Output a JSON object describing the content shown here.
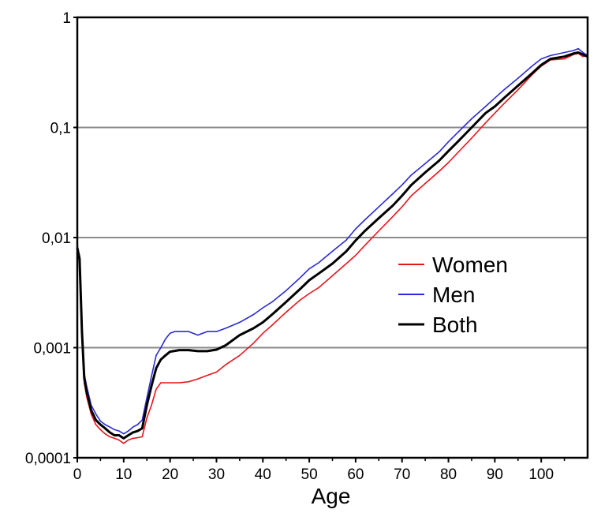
{
  "chart_data": {
    "type": "line",
    "title": "",
    "xlabel": "Age",
    "ylabel": "",
    "y_scale": "log",
    "xlim": [
      0,
      110
    ],
    "ylim": [
      0.0001,
      1
    ],
    "grid": "horizontal",
    "legend_position": "center-right",
    "x_ticks": [
      "0",
      "10",
      "20",
      "30",
      "40",
      "50",
      "60",
      "70",
      "80",
      "90",
      "100"
    ],
    "y_ticks": [
      "0,0001",
      "0,001",
      "0,01",
      "0,1",
      "1"
    ],
    "series": [
      {
        "name": "Women",
        "color": "#e8141b",
        "x": [
          0,
          0.5,
          1,
          1.5,
          2,
          3,
          4,
          5,
          6,
          7,
          8,
          9,
          10,
          11,
          12,
          13,
          14,
          15,
          16,
          17,
          18,
          20,
          22,
          24,
          26,
          28,
          30,
          32,
          35,
          38,
          40,
          42,
          45,
          48,
          50,
          52,
          55,
          58,
          60,
          62,
          65,
          68,
          70,
          72,
          75,
          78,
          80,
          82,
          85,
          88,
          90,
          92,
          95,
          98,
          100,
          102,
          105,
          107,
          108,
          109,
          110
        ],
        "y": [
          0.0075,
          0.006,
          0.0013,
          0.00048,
          0.00036,
          0.00025,
          0.0002,
          0.00018,
          0.000165,
          0.000155,
          0.00015,
          0.000145,
          0.000135,
          0.000145,
          0.00015,
          0.000152,
          0.000155,
          0.00023,
          0.0003,
          0.00042,
          0.00048,
          0.00048,
          0.00048,
          0.00049,
          0.00052,
          0.00056,
          0.0006,
          0.0007,
          0.00085,
          0.0011,
          0.00135,
          0.0016,
          0.0021,
          0.0027,
          0.0031,
          0.0035,
          0.0045,
          0.0058,
          0.0069,
          0.0085,
          0.0115,
          0.0155,
          0.019,
          0.024,
          0.031,
          0.04,
          0.048,
          0.059,
          0.08,
          0.11,
          0.135,
          0.165,
          0.22,
          0.3,
          0.36,
          0.41,
          0.42,
          0.46,
          0.47,
          0.44,
          0.45
        ]
      },
      {
        "name": "Men",
        "color": "#2a2ad4",
        "x": [
          0,
          0.5,
          1,
          1.5,
          2,
          3,
          4,
          5,
          6,
          7,
          8,
          9,
          10,
          11,
          12,
          13,
          14,
          15,
          16,
          17,
          18,
          19,
          20,
          21,
          22,
          24,
          26,
          28,
          30,
          32,
          35,
          38,
          40,
          42,
          45,
          48,
          50,
          52,
          55,
          58,
          60,
          62,
          65,
          68,
          70,
          72,
          75,
          78,
          80,
          82,
          85,
          88,
          90,
          92,
          95,
          98,
          100,
          102,
          105,
          107,
          108,
          109,
          110
        ],
        "y": [
          0.0085,
          0.0068,
          0.0015,
          0.00058,
          0.00045,
          0.0003,
          0.00025,
          0.000215,
          0.0002,
          0.00019,
          0.00018,
          0.000175,
          0.000165,
          0.000175,
          0.00019,
          0.0002,
          0.00022,
          0.00035,
          0.00055,
          0.00085,
          0.001,
          0.0012,
          0.00135,
          0.0014,
          0.0014,
          0.0014,
          0.0013,
          0.0014,
          0.0014,
          0.0015,
          0.0017,
          0.002,
          0.0023,
          0.0026,
          0.0033,
          0.0043,
          0.0052,
          0.0059,
          0.0075,
          0.0095,
          0.012,
          0.0145,
          0.019,
          0.025,
          0.03,
          0.037,
          0.047,
          0.06,
          0.074,
          0.09,
          0.12,
          0.155,
          0.185,
          0.22,
          0.28,
          0.36,
          0.42,
          0.45,
          0.48,
          0.5,
          0.52,
          0.48,
          0.45
        ]
      },
      {
        "name": "Both",
        "color": "#000000",
        "x": [
          0,
          0.5,
          1,
          1.5,
          2,
          3,
          4,
          5,
          6,
          7,
          8,
          9,
          10,
          11,
          12,
          13,
          14,
          15,
          16,
          17,
          18,
          19,
          20,
          22,
          24,
          26,
          28,
          30,
          32,
          35,
          38,
          40,
          42,
          45,
          48,
          50,
          52,
          55,
          58,
          60,
          62,
          65,
          68,
          70,
          72,
          75,
          78,
          80,
          82,
          85,
          88,
          90,
          92,
          95,
          98,
          100,
          102,
          105,
          107,
          108,
          109,
          110
        ],
        "y": [
          0.008,
          0.0064,
          0.0014,
          0.00053,
          0.0004,
          0.00027,
          0.00022,
          0.0002,
          0.000185,
          0.00017,
          0.00016,
          0.00016,
          0.00015,
          0.00016,
          0.00017,
          0.000175,
          0.000185,
          0.0003,
          0.00045,
          0.00065,
          0.00078,
          0.00085,
          0.00092,
          0.00095,
          0.00095,
          0.00093,
          0.00093,
          0.00096,
          0.00105,
          0.0013,
          0.0015,
          0.0017,
          0.002,
          0.0026,
          0.0034,
          0.0041,
          0.0047,
          0.0058,
          0.0075,
          0.0094,
          0.0115,
          0.015,
          0.0195,
          0.024,
          0.03,
          0.039,
          0.05,
          0.061,
          0.074,
          0.1,
          0.135,
          0.155,
          0.185,
          0.24,
          0.31,
          0.37,
          0.42,
          0.44,
          0.47,
          0.48,
          0.46,
          0.44
        ]
      }
    ]
  }
}
